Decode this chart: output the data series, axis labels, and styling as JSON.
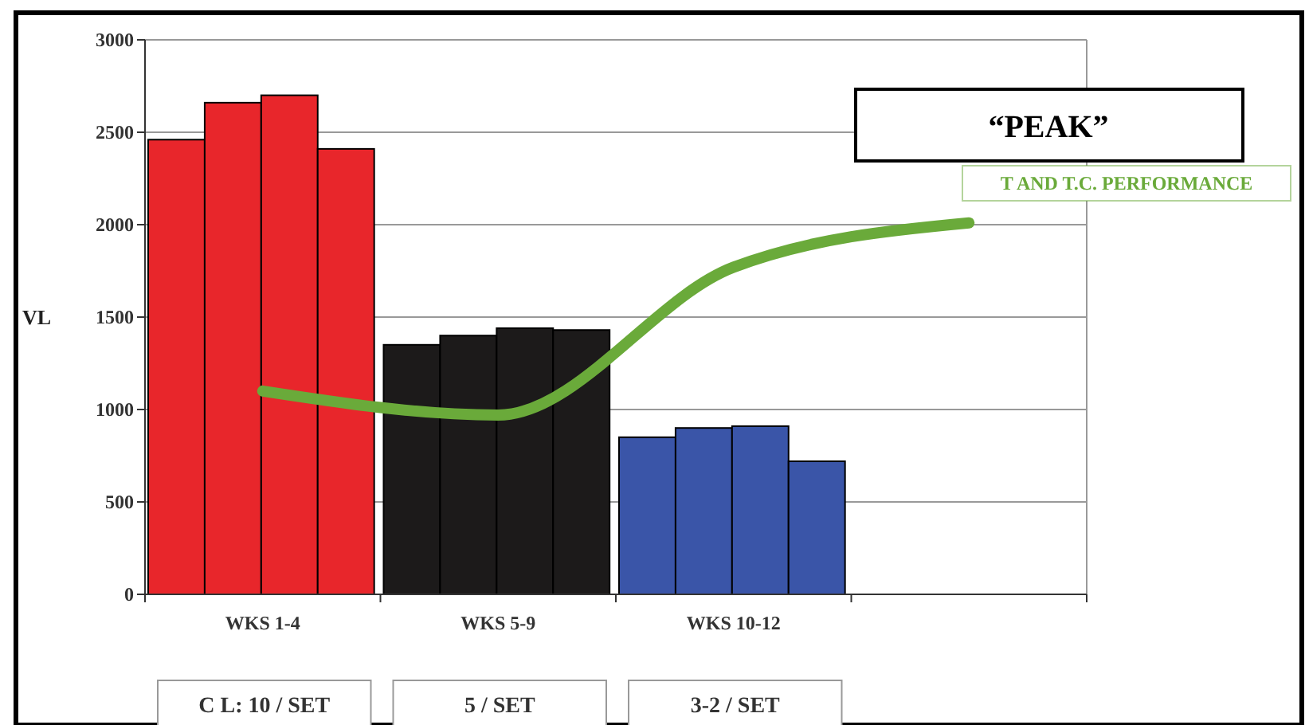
{
  "chart_data": {
    "type": "bar",
    "ylabel": "VL",
    "categories": [
      "WKS 1-4",
      "WKS 5-9",
      "WKS 10-12",
      null
    ],
    "series": [
      {
        "colors": [
          "#e8262b",
          "#1c1a1a",
          "#3a55a8",
          null
        ],
        "values": [
          2460,
          1350,
          850,
          null
        ]
      },
      {
        "colors": [
          "#e8262b",
          "#1c1a1a",
          "#3a55a8",
          null
        ],
        "values": [
          2660,
          1400,
          900,
          null
        ]
      },
      {
        "colors": [
          "#e8262b",
          "#1c1a1a",
          "#3a55a8",
          null
        ],
        "values": [
          2700,
          1440,
          910,
          null
        ]
      },
      {
        "colors": [
          "#e8262b",
          "#1c1a1a",
          "#3a55a8",
          null
        ],
        "values": [
          2410,
          1430,
          720,
          null
        ]
      },
      {
        "type": "line",
        "name": "T AND T.C. PERFORMANCE",
        "color": "#6aaa3a",
        "values": [
          1100,
          970,
          1770,
          2010
        ]
      }
    ],
    "ylim": [
      0,
      3000
    ],
    "yticks": [
      0,
      500,
      1000,
      1500,
      2000,
      2500,
      3000
    ],
    "grid": "y",
    "legend": "top right",
    "annotations": [
      "“PEAK”",
      "C L: 10 / SET",
      "5 / SET",
      "3-2 / SET"
    ]
  }
}
